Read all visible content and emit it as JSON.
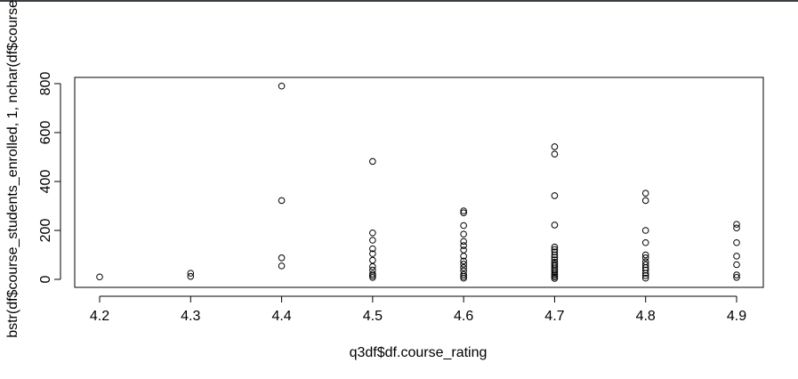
{
  "chart_data": {
    "type": "scatter",
    "title": "",
    "xlabel": "q3df$df.course_rating",
    "ylabel": "bstr(df$course_students_enrolled, 1, nchar(df$course",
    "xlim": [
      4.2,
      4.9
    ],
    "ylim": [
      0,
      800
    ],
    "x_ticks": [
      "4.2",
      "4.3",
      "4.4",
      "4.5",
      "4.6",
      "4.7",
      "4.8",
      "4.9"
    ],
    "y_ticks": [
      "0",
      "200",
      "400",
      "600",
      "800"
    ],
    "grid": false,
    "legend": "none",
    "marker": "open-circle",
    "series": [
      {
        "points": [
          [
            4.2,
            10
          ],
          [
            4.3,
            12
          ],
          [
            4.3,
            25
          ],
          [
            4.4,
            55
          ],
          [
            4.4,
            88
          ],
          [
            4.4,
            322
          ],
          [
            4.4,
            790
          ],
          [
            4.5,
            8
          ],
          [
            4.5,
            15
          ],
          [
            4.5,
            22
          ],
          [
            4.5,
            38
          ],
          [
            4.5,
            52
          ],
          [
            4.5,
            78
          ],
          [
            4.5,
            105
          ],
          [
            4.5,
            125
          ],
          [
            4.5,
            160
          ],
          [
            4.5,
            190
          ],
          [
            4.5,
            482
          ],
          [
            4.6,
            5
          ],
          [
            4.6,
            12
          ],
          [
            4.6,
            20
          ],
          [
            4.6,
            35
          ],
          [
            4.6,
            48
          ],
          [
            4.6,
            62
          ],
          [
            4.6,
            75
          ],
          [
            4.6,
            95
          ],
          [
            4.6,
            120
          ],
          [
            4.6,
            138
          ],
          [
            4.6,
            155
          ],
          [
            4.6,
            185
          ],
          [
            4.6,
            220
          ],
          [
            4.6,
            272
          ],
          [
            4.6,
            280
          ],
          [
            4.7,
            4
          ],
          [
            4.7,
            10
          ],
          [
            4.7,
            16
          ],
          [
            4.7,
            22
          ],
          [
            4.7,
            30
          ],
          [
            4.7,
            38
          ],
          [
            4.7,
            46
          ],
          [
            4.7,
            55
          ],
          [
            4.7,
            62
          ],
          [
            4.7,
            70
          ],
          [
            4.7,
            80
          ],
          [
            4.7,
            90
          ],
          [
            4.7,
            100
          ],
          [
            4.7,
            112
          ],
          [
            4.7,
            122
          ],
          [
            4.7,
            132
          ],
          [
            4.7,
            222
          ],
          [
            4.7,
            342
          ],
          [
            4.7,
            512
          ],
          [
            4.7,
            542
          ],
          [
            4.8,
            5
          ],
          [
            4.8,
            15
          ],
          [
            4.8,
            25
          ],
          [
            4.8,
            38
          ],
          [
            4.8,
            48
          ],
          [
            4.8,
            60
          ],
          [
            4.8,
            72
          ],
          [
            4.8,
            88
          ],
          [
            4.8,
            100
          ],
          [
            4.8,
            150
          ],
          [
            4.8,
            200
          ],
          [
            4.8,
            322
          ],
          [
            4.8,
            352
          ],
          [
            4.9,
            8
          ],
          [
            4.9,
            18
          ],
          [
            4.9,
            60
          ],
          [
            4.9,
            95
          ],
          [
            4.9,
            150
          ],
          [
            4.9,
            210
          ],
          [
            4.9,
            225
          ]
        ]
      }
    ]
  }
}
